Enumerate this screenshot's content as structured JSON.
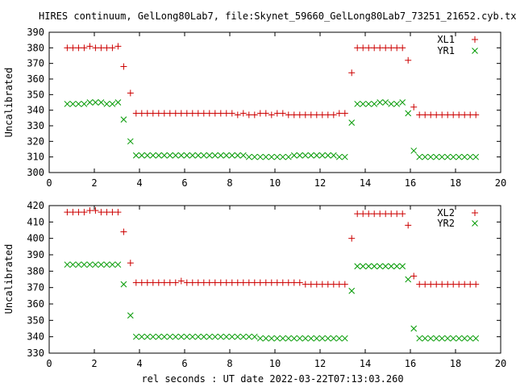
{
  "title": "HIRES continuum, GelLong80Lab7, file:Skynet_59660_GelLong80Lab7_73251_21652.cyb.txt",
  "xlabel": "rel seconds : UT date 2022-03-22T07:13:03.260",
  "colors": {
    "x_series": "#cc0000",
    "y_series": "#009900",
    "frame": "#000000"
  },
  "chart_data": [
    {
      "type": "scatter",
      "ylabel": "Uncalibrated",
      "xlim": [
        0,
        20
      ],
      "ylim": [
        300,
        390
      ],
      "xticks": [
        0,
        2,
        4,
        6,
        8,
        10,
        12,
        14,
        16,
        18,
        20
      ],
      "yticks": [
        300,
        310,
        320,
        330,
        340,
        350,
        360,
        370,
        380,
        390
      ],
      "grid": false,
      "legend": "top-right",
      "series": [
        {
          "name": "XL1",
          "marker": "plus",
          "x": [
            0.8,
            1.05,
            1.3,
            1.55,
            1.8,
            2.05,
            2.3,
            2.55,
            2.8,
            3.05,
            3.3,
            3.6,
            3.85,
            4.1,
            4.35,
            4.6,
            4.85,
            5.1,
            5.35,
            5.6,
            5.85,
            6.1,
            6.35,
            6.6,
            6.85,
            7.1,
            7.35,
            7.6,
            7.85,
            8.1,
            8.35,
            8.6,
            8.85,
            9.1,
            9.35,
            9.6,
            9.85,
            10.1,
            10.35,
            10.6,
            10.85,
            11.1,
            11.35,
            11.6,
            11.85,
            12.1,
            12.35,
            12.6,
            12.85,
            13.1,
            13.4,
            13.65,
            13.9,
            14.15,
            14.4,
            14.65,
            14.9,
            15.15,
            15.4,
            15.65,
            15.9,
            16.15,
            16.4,
            16.65,
            16.9,
            17.15,
            17.4,
            17.65,
            17.9,
            18.15,
            18.4,
            18.65,
            18.9
          ],
          "y": [
            380,
            380,
            380,
            380,
            381,
            380,
            380,
            380,
            380,
            381,
            368,
            351,
            338,
            338,
            338,
            338,
            338,
            338,
            338,
            338,
            338,
            338,
            338,
            338,
            338,
            338,
            338,
            338,
            338,
            338,
            337,
            338,
            337,
            337,
            338,
            338,
            337,
            338,
            338,
            337,
            337,
            337,
            337,
            337,
            337,
            337,
            337,
            337,
            338,
            338,
            364,
            380,
            380,
            380,
            380,
            380,
            380,
            380,
            380,
            380,
            372,
            342,
            337,
            337,
            337,
            337,
            337,
            337,
            337,
            337,
            337,
            337,
            337
          ]
        },
        {
          "name": "YR1",
          "marker": "cross",
          "x": [
            0.8,
            1.05,
            1.3,
            1.55,
            1.8,
            2.05,
            2.3,
            2.55,
            2.8,
            3.05,
            3.3,
            3.6,
            3.85,
            4.1,
            4.35,
            4.6,
            4.85,
            5.1,
            5.35,
            5.6,
            5.85,
            6.1,
            6.35,
            6.6,
            6.85,
            7.1,
            7.35,
            7.6,
            7.85,
            8.1,
            8.35,
            8.6,
            8.85,
            9.1,
            9.35,
            9.6,
            9.85,
            10.1,
            10.35,
            10.6,
            10.85,
            11.1,
            11.35,
            11.6,
            11.85,
            12.1,
            12.35,
            12.6,
            12.85,
            13.1,
            13.4,
            13.65,
            13.9,
            14.15,
            14.4,
            14.65,
            14.9,
            15.15,
            15.4,
            15.65,
            15.9,
            16.15,
            16.4,
            16.65,
            16.9,
            17.15,
            17.4,
            17.65,
            17.9,
            18.15,
            18.4,
            18.65,
            18.9
          ],
          "y": [
            344,
            344,
            344,
            344,
            345,
            345,
            345,
            344,
            344,
            345,
            334,
            320,
            311,
            311,
            311,
            311,
            311,
            311,
            311,
            311,
            311,
            311,
            311,
            311,
            311,
            311,
            311,
            311,
            311,
            311,
            311,
            311,
            310,
            310,
            310,
            310,
            310,
            310,
            310,
            310,
            311,
            311,
            311,
            311,
            311,
            311,
            311,
            311,
            310,
            310,
            332,
            344,
            344,
            344,
            344,
            345,
            345,
            344,
            344,
            345,
            338,
            314,
            310,
            310,
            310,
            310,
            310,
            310,
            310,
            310,
            310,
            310,
            310
          ]
        }
      ]
    },
    {
      "type": "scatter",
      "ylabel": "Uncalibrated",
      "xlim": [
        0,
        20
      ],
      "ylim": [
        330,
        420
      ],
      "xticks": [
        0,
        2,
        4,
        6,
        8,
        10,
        12,
        14,
        16,
        18,
        20
      ],
      "yticks": [
        330,
        340,
        350,
        360,
        370,
        380,
        390,
        400,
        410,
        420
      ],
      "grid": false,
      "legend": "top-right",
      "series": [
        {
          "name": "XL2",
          "marker": "plus",
          "x": [
            0.8,
            1.05,
            1.3,
            1.55,
            1.8,
            2.05,
            2.3,
            2.55,
            2.8,
            3.05,
            3.3,
            3.6,
            3.85,
            4.1,
            4.35,
            4.6,
            4.85,
            5.1,
            5.35,
            5.6,
            5.85,
            6.1,
            6.35,
            6.6,
            6.85,
            7.1,
            7.35,
            7.6,
            7.85,
            8.1,
            8.35,
            8.6,
            8.85,
            9.1,
            9.35,
            9.6,
            9.85,
            10.1,
            10.35,
            10.6,
            10.85,
            11.1,
            11.35,
            11.6,
            11.85,
            12.1,
            12.35,
            12.6,
            12.85,
            13.1,
            13.4,
            13.65,
            13.9,
            14.15,
            14.4,
            14.65,
            14.9,
            15.15,
            15.4,
            15.65,
            15.9,
            16.15,
            16.4,
            16.65,
            16.9,
            17.15,
            17.4,
            17.65,
            17.9,
            18.15,
            18.4,
            18.65,
            18.9
          ],
          "y": [
            416,
            416,
            416,
            416,
            417,
            417,
            416,
            416,
            416,
            416,
            404,
            385,
            373,
            373,
            373,
            373,
            373,
            373,
            373,
            373,
            374,
            373,
            373,
            373,
            373,
            373,
            373,
            373,
            373,
            373,
            373,
            373,
            373,
            373,
            373,
            373,
            373,
            373,
            373,
            373,
            373,
            373,
            372,
            372,
            372,
            372,
            372,
            372,
            372,
            372,
            400,
            415,
            415,
            415,
            415,
            415,
            415,
            415,
            415,
            415,
            408,
            377,
            372,
            372,
            372,
            372,
            372,
            372,
            372,
            372,
            372,
            372,
            372
          ]
        },
        {
          "name": "YR2",
          "marker": "cross",
          "x": [
            0.8,
            1.05,
            1.3,
            1.55,
            1.8,
            2.05,
            2.3,
            2.55,
            2.8,
            3.05,
            3.3,
            3.6,
            3.85,
            4.1,
            4.35,
            4.6,
            4.85,
            5.1,
            5.35,
            5.6,
            5.85,
            6.1,
            6.35,
            6.6,
            6.85,
            7.1,
            7.35,
            7.6,
            7.85,
            8.1,
            8.35,
            8.6,
            8.85,
            9.1,
            9.35,
            9.6,
            9.85,
            10.1,
            10.35,
            10.6,
            10.85,
            11.1,
            11.35,
            11.6,
            11.85,
            12.1,
            12.35,
            12.6,
            12.85,
            13.1,
            13.4,
            13.65,
            13.9,
            14.15,
            14.4,
            14.65,
            14.9,
            15.15,
            15.4,
            15.65,
            15.9,
            16.15,
            16.4,
            16.65,
            16.9,
            17.15,
            17.4,
            17.65,
            17.9,
            18.15,
            18.4,
            18.65,
            18.9
          ],
          "y": [
            384,
            384,
            384,
            384,
            384,
            384,
            384,
            384,
            384,
            384,
            372,
            353,
            340,
            340,
            340,
            340,
            340,
            340,
            340,
            340,
            340,
            340,
            340,
            340,
            340,
            340,
            340,
            340,
            340,
            340,
            340,
            340,
            340,
            340,
            339,
            339,
            339,
            339,
            339,
            339,
            339,
            339,
            339,
            339,
            339,
            339,
            339,
            339,
            339,
            339,
            368,
            383,
            383,
            383,
            383,
            383,
            383,
            383,
            383,
            383,
            375,
            345,
            339,
            339,
            339,
            339,
            339,
            339,
            339,
            339,
            339,
            339,
            339
          ]
        }
      ]
    }
  ]
}
